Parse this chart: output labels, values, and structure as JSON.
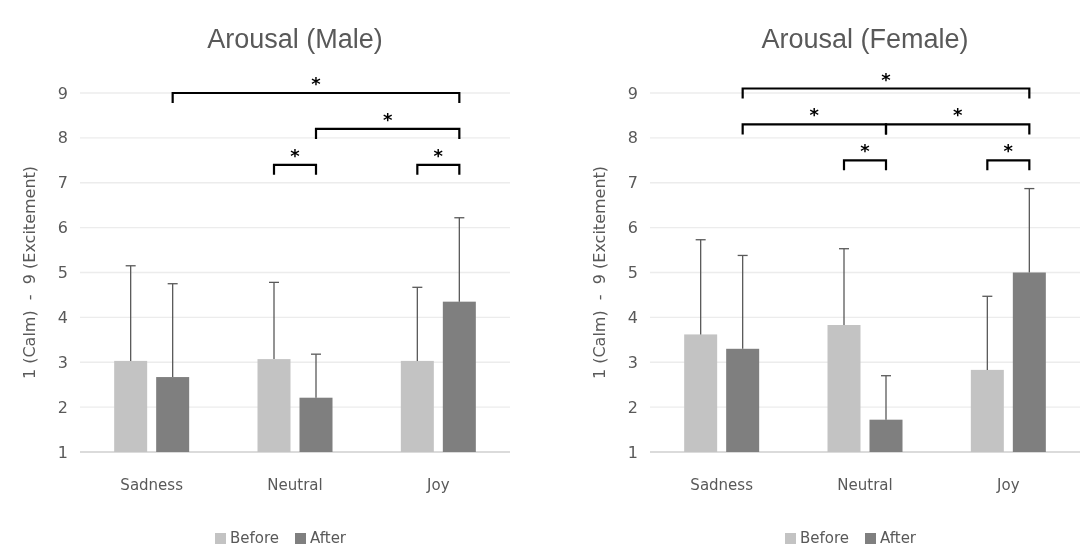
{
  "chart_data": [
    {
      "type": "bar",
      "title": "Arousal (Male)",
      "ylabel": "1 (Calm)  -  9 (Excitement)",
      "categories": [
        "Sadness",
        "Neutral",
        "Joy"
      ],
      "ylim": [
        1,
        9
      ],
      "yticks": [
        1,
        2,
        3,
        4,
        5,
        6,
        7,
        8,
        9
      ],
      "grid": "y",
      "legend": "bottom",
      "annotations": [
        "*",
        "*",
        "*",
        "*"
      ],
      "series": [
        {
          "name": "Before",
          "color": "#c3c3c3",
          "values": [
            3.03,
            3.07,
            3.03
          ],
          "errors": [
            [
              3.03,
              5.15
            ],
            [
              3.07,
              4.78
            ],
            [
              3.03,
              4.67
            ]
          ]
        },
        {
          "name": "After",
          "color": "#7f7f7f",
          "values": [
            2.67,
            2.21,
            4.35
          ],
          "errors": [
            [
              2.67,
              4.75
            ],
            [
              2.21,
              3.18
            ],
            [
              4.35,
              6.22
            ]
          ]
        }
      ]
    },
    {
      "type": "bar",
      "title": "Arousal (Female)",
      "ylabel": "1 (Calm)  -  9 (Excitement)",
      "categories": [
        "Sadness",
        "Neutral",
        "Joy"
      ],
      "ylim": [
        1,
        9
      ],
      "yticks": [
        1,
        2,
        3,
        4,
        5,
        6,
        7,
        8,
        9
      ],
      "grid": "y",
      "legend": "bottom",
      "annotations": [
        "*",
        "*",
        "*",
        "*",
        "*"
      ],
      "series": [
        {
          "name": "Before",
          "color": "#c3c3c3",
          "values": [
            3.62,
            3.83,
            2.83
          ],
          "errors": [
            [
              3.62,
              5.73
            ],
            [
              3.83,
              5.53
            ],
            [
              2.83,
              4.47
            ]
          ]
        },
        {
          "name": "After",
          "color": "#7f7f7f",
          "values": [
            3.3,
            1.72,
            5.0
          ],
          "errors": [
            [
              3.3,
              5.38
            ],
            [
              1.72,
              2.7
            ],
            [
              5.0,
              6.87
            ]
          ]
        }
      ]
    }
  ]
}
